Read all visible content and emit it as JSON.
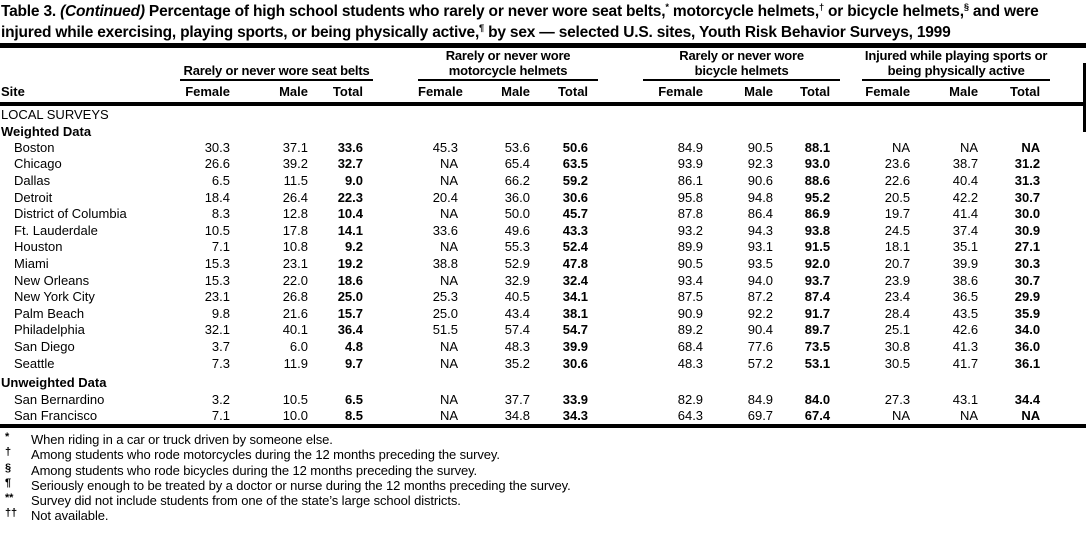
{
  "title": {
    "segments": [
      {
        "t": "Table 3. "
      },
      {
        "t": "(Continued)",
        "i": true
      },
      {
        "t": " Percentage of high school students who rarely or never wore seat belts,"
      },
      {
        "t": "*",
        "sup": true
      },
      {
        "t": " motorcycle helmets,"
      },
      {
        "t": "†",
        "sup": true
      },
      {
        "t": " or bicycle helmets,"
      },
      {
        "t": "§",
        "sup": true
      },
      {
        "t": " and were injured while exercising, playing sports, or being physically active,"
      },
      {
        "t": "¶",
        "sup": true
      },
      {
        "t": " by sex — selected U.S. sites, Youth Risk Behavior Surveys, 1999"
      }
    ]
  },
  "table": {
    "site_header": "Site",
    "groups": [
      {
        "lines": [
          "Rarely or never wore seat belts"
        ]
      },
      {
        "lines": [
          "Rarely or never wore",
          "motorcycle helmets"
        ]
      },
      {
        "lines": [
          "Rarely or never wore",
          "bicycle helmets"
        ]
      },
      {
        "lines": [
          "Injured while playing sports or",
          "being physically active"
        ]
      }
    ],
    "sub_headers": [
      "Female",
      "Male",
      "Total"
    ],
    "sections": [
      {
        "label": "LOCAL SURVEYS",
        "style": "caps",
        "rows": []
      },
      {
        "label": "Weighted Data",
        "style": "bold",
        "rows": [
          {
            "site": "Boston",
            "values": [
              "30.3",
              "37.1",
              "33.6",
              "45.3",
              "53.6",
              "50.6",
              "84.9",
              "90.5",
              "88.1",
              "NA",
              "NA",
              "NA"
            ]
          },
          {
            "site": "Chicago",
            "values": [
              "26.6",
              "39.2",
              "32.7",
              "NA",
              "65.4",
              "63.5",
              "93.9",
              "92.3",
              "93.0",
              "23.6",
              "38.7",
              "31.2"
            ]
          },
          {
            "site": "Dallas",
            "values": [
              "6.5",
              "11.5",
              "9.0",
              "NA",
              "66.2",
              "59.2",
              "86.1",
              "90.6",
              "88.6",
              "22.6",
              "40.4",
              "31.3"
            ]
          },
          {
            "site": "Detroit",
            "values": [
              "18.4",
              "26.4",
              "22.3",
              "20.4",
              "36.0",
              "30.6",
              "95.8",
              "94.8",
              "95.2",
              "20.5",
              "42.2",
              "30.7"
            ]
          },
          {
            "site": "District of Columbia",
            "values": [
              "8.3",
              "12.8",
              "10.4",
              "NA",
              "50.0",
              "45.7",
              "87.8",
              "86.4",
              "86.9",
              "19.7",
              "41.4",
              "30.0"
            ]
          },
          {
            "site": "Ft. Lauderdale",
            "values": [
              "10.5",
              "17.8",
              "14.1",
              "33.6",
              "49.6",
              "43.3",
              "93.2",
              "94.3",
              "93.8",
              "24.5",
              "37.4",
              "30.9"
            ]
          },
          {
            "site": "Houston",
            "values": [
              "7.1",
              "10.8",
              "9.2",
              "NA",
              "55.3",
              "52.4",
              "89.9",
              "93.1",
              "91.5",
              "18.1",
              "35.1",
              "27.1"
            ]
          },
          {
            "site": "Miami",
            "values": [
              "15.3",
              "23.1",
              "19.2",
              "38.8",
              "52.9",
              "47.8",
              "90.5",
              "93.5",
              "92.0",
              "20.7",
              "39.9",
              "30.3"
            ]
          },
          {
            "site": "New Orleans",
            "values": [
              "15.3",
              "22.0",
              "18.6",
              "NA",
              "32.9",
              "32.4",
              "93.4",
              "94.0",
              "93.7",
              "23.9",
              "38.6",
              "30.7"
            ]
          },
          {
            "site": "New York City",
            "values": [
              "23.1",
              "26.8",
              "25.0",
              "25.3",
              "40.5",
              "34.1",
              "87.5",
              "87.2",
              "87.4",
              "23.4",
              "36.5",
              "29.9"
            ]
          },
          {
            "site": "Palm Beach",
            "values": [
              "9.8",
              "21.6",
              "15.7",
              "25.0",
              "43.4",
              "38.1",
              "90.9",
              "92.2",
              "91.7",
              "28.4",
              "43.5",
              "35.9"
            ]
          },
          {
            "site": "Philadelphia",
            "values": [
              "32.1",
              "40.1",
              "36.4",
              "51.5",
              "57.4",
              "54.7",
              "89.2",
              "90.4",
              "89.7",
              "25.1",
              "42.6",
              "34.0"
            ]
          },
          {
            "site": "San Diego",
            "values": [
              "3.7",
              "6.0",
              "4.8",
              "NA",
              "48.3",
              "39.9",
              "68.4",
              "77.6",
              "73.5",
              "30.8",
              "41.3",
              "36.0"
            ]
          },
          {
            "site": "Seattle",
            "values": [
              "7.3",
              "11.9",
              "9.7",
              "NA",
              "35.2",
              "30.6",
              "48.3",
              "57.2",
              "53.1",
              "30.5",
              "41.7",
              "36.1"
            ]
          }
        ]
      },
      {
        "label": "Unweighted Data",
        "style": "bold gap",
        "rows": [
          {
            "site": "San Bernardino",
            "values": [
              "3.2",
              "10.5",
              "6.5",
              "NA",
              "37.7",
              "33.9",
              "82.9",
              "84.9",
              "84.0",
              "27.3",
              "43.1",
              "34.4"
            ]
          },
          {
            "site": "San Francisco",
            "values": [
              "7.1",
              "10.0",
              "8.5",
              "NA",
              "34.8",
              "34.3",
              "64.3",
              "69.7",
              "67.4",
              "NA",
              "NA",
              "NA"
            ]
          }
        ]
      }
    ]
  },
  "footnotes": [
    {
      "marker": "*",
      "text": "When riding in a car or truck driven by someone else."
    },
    {
      "marker": "†",
      "text": "Among students who rode motorcycles during the 12 months preceding the survey."
    },
    {
      "marker": "§",
      "text": "Among students who rode bicycles during the 12 months preceding the survey."
    },
    {
      "marker": "¶",
      "text": "Seriously enough to be treated by a doctor or nurse during the 12 months preceding the survey."
    },
    {
      "marker": "**",
      "text": "Survey did not include students from one of the state’s large school districts."
    },
    {
      "marker": "††",
      "text": "Not available."
    }
  ],
  "colors": {
    "ink": "#000000",
    "paper": "#ffffff"
  }
}
